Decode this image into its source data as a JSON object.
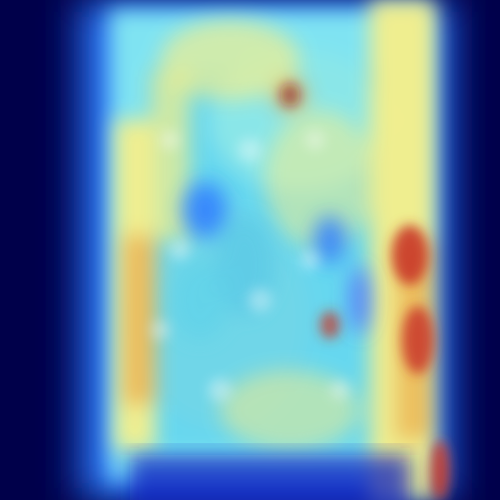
{
  "image": {
    "kind": "heatmap-overlay",
    "description_free": true,
    "colormap": [
      "#00004a",
      "#0a1fbf",
      "#2f7cff",
      "#7fe3f2",
      "#bff6d6",
      "#f6ef8a",
      "#f2b24a",
      "#c9372a",
      "#8f0f1a"
    ],
    "background_color": "#00004a"
  }
}
